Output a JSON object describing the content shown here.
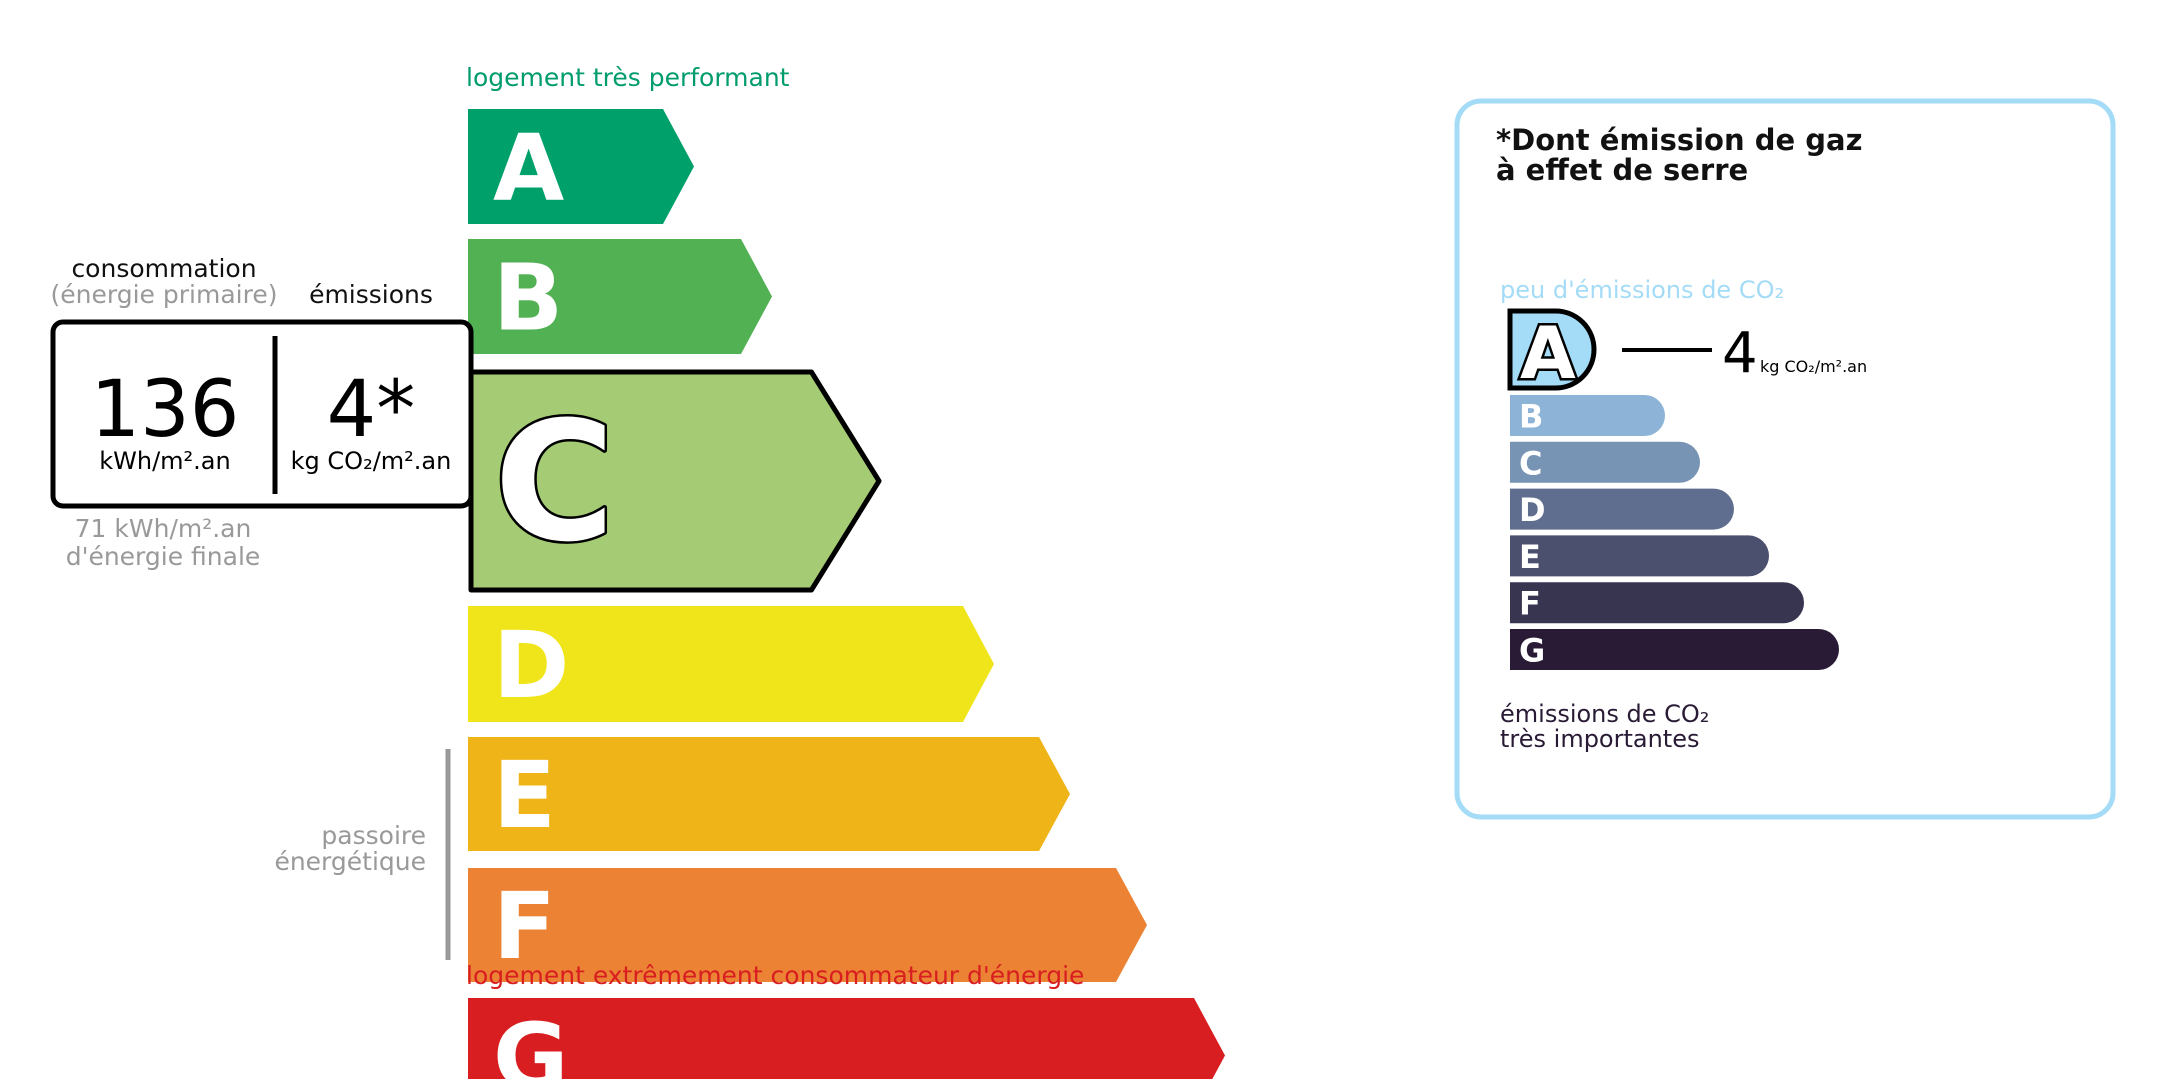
{
  "energy": {
    "top_label": "logement très performant",
    "bottom_label": "logement extrêmement consommateur d'énergie",
    "top_label_color": "#009c6d",
    "bottom_label_color": "#d81e20",
    "current_class": "C",
    "classes": [
      {
        "letter": "A",
        "color": "#00a06b"
      },
      {
        "letter": "B",
        "color": "#52b153"
      },
      {
        "letter": "C",
        "color": "#a5cc74"
      },
      {
        "letter": "D",
        "color": "#f0e51a"
      },
      {
        "letter": "E",
        "color": "#efb418"
      },
      {
        "letter": "F",
        "color": "#eb8234"
      },
      {
        "letter": "G",
        "color": "#d81e20"
      }
    ],
    "consumption_label": "consommation",
    "consumption_sublabel": "(énergie primaire)",
    "emissions_label": "émissions",
    "consumption_value": "136",
    "consumption_unit": "kWh/m².an",
    "emissions_value": "4*",
    "emissions_unit": "kg CO₂/m².an",
    "final_energy_value": "71 kWh/m².an",
    "final_energy_label": "d'énergie finale",
    "passoire_line1": "passoire",
    "passoire_line2": "énergétique"
  },
  "ghg": {
    "title_line1": "*Dont émission de gaz",
    "title_line2": "à effet de serre",
    "top_label": "peu d'émissions de CO₂",
    "bottom_label_line1": "émissions de CO₂",
    "bottom_label_line2": "très importantes",
    "current_class": "A",
    "value": "4",
    "unit": "kg CO₂/m².an",
    "border_color": "#a4dbf6",
    "classes": [
      {
        "letter": "A",
        "color": "#a4dbf6"
      },
      {
        "letter": "B",
        "color": "#8db4d6"
      },
      {
        "letter": "C",
        "color": "#7794b5"
      },
      {
        "letter": "D",
        "color": "#5f6e8f"
      },
      {
        "letter": "E",
        "color": "#4c506f"
      },
      {
        "letter": "F",
        "color": "#383551"
      },
      {
        "letter": "G",
        "color": "#291b35"
      }
    ]
  }
}
